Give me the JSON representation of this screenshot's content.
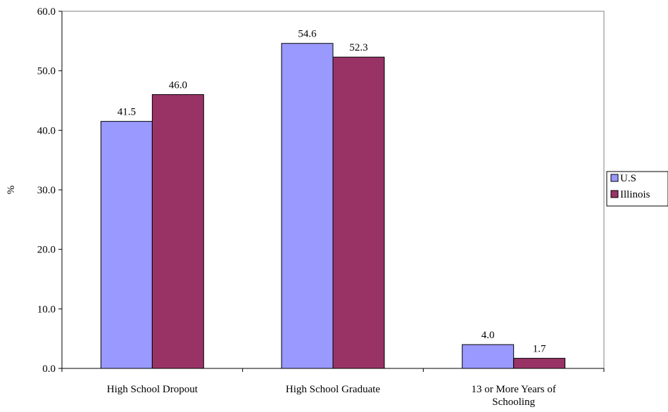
{
  "chart_data": {
    "type": "bar",
    "title": "",
    "xlabel": "",
    "ylabel": "%",
    "ylim": [
      0,
      60
    ],
    "ytick_step": 10,
    "ytick_labels": [
      "0.0",
      "10.0",
      "20.0",
      "30.0",
      "40.0",
      "50.0",
      "60.0"
    ],
    "categories": [
      [
        "High School Dropout"
      ],
      [
        "High School Graduate"
      ],
      [
        "13 or More Years of",
        "Schooling"
      ]
    ],
    "series": [
      {
        "name": "U.S",
        "color": "#9999FF",
        "values": [
          41.5,
          54.6,
          4.0
        ],
        "labels": [
          "41.5",
          "54.6",
          "4.0"
        ]
      },
      {
        "name": "Illinois",
        "color": "#993366",
        "values": [
          46.0,
          52.3,
          1.7
        ],
        "labels": [
          "46.0",
          "52.3",
          "1.7"
        ]
      }
    ],
    "grid": false,
    "legend": "right"
  }
}
